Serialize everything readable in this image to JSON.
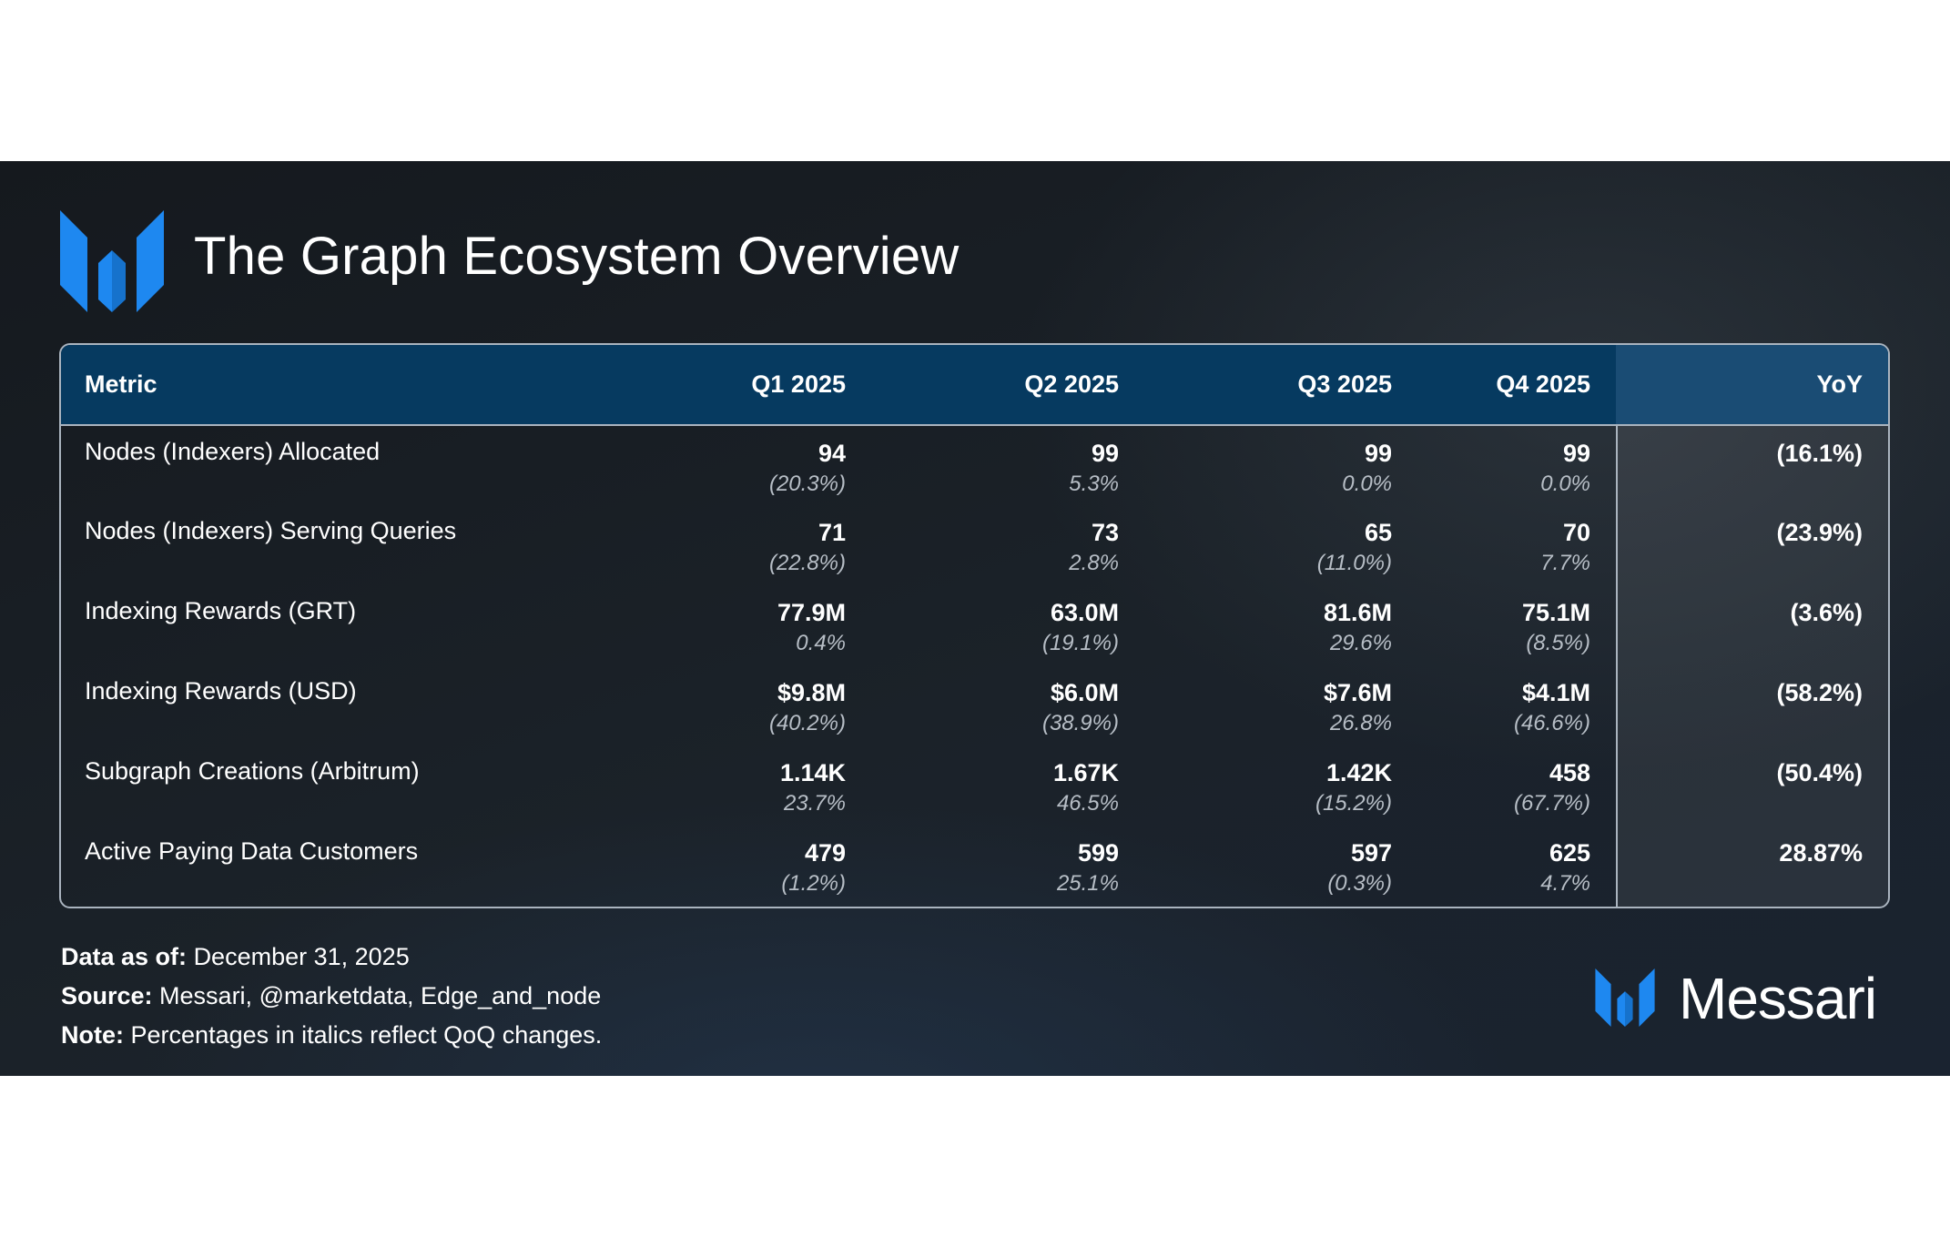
{
  "header": {
    "title": "The Graph Ecosystem Overview",
    "logo_icon": "messari-logo-icon",
    "brand_color": "#1e88f0"
  },
  "table": {
    "columns": [
      "Metric",
      "Q1 2025",
      "Q2 2025",
      "Q3 2025",
      "Q4 2025",
      "YoY"
    ],
    "rows": [
      {
        "metric": "Nodes (Indexers) Allocated",
        "quarters": [
          {
            "value": "94",
            "change": "(20.3%)"
          },
          {
            "value": "99",
            "change": "5.3%"
          },
          {
            "value": "99",
            "change": "0.0%"
          },
          {
            "value": "99",
            "change": "0.0%"
          }
        ],
        "yoy": "(16.1%)"
      },
      {
        "metric": "Nodes (Indexers) Serving Queries",
        "quarters": [
          {
            "value": "71",
            "change": "(22.8%)"
          },
          {
            "value": "73",
            "change": "2.8%"
          },
          {
            "value": "65",
            "change": "(11.0%)"
          },
          {
            "value": "70",
            "change": "7.7%"
          }
        ],
        "yoy": "(23.9%)"
      },
      {
        "metric": "Indexing Rewards (GRT)",
        "quarters": [
          {
            "value": "77.9M",
            "change": "0.4%"
          },
          {
            "value": "63.0M",
            "change": "(19.1%)"
          },
          {
            "value": "81.6M",
            "change": "29.6%"
          },
          {
            "value": "75.1M",
            "change": "(8.5%)"
          }
        ],
        "yoy": "(3.6%)"
      },
      {
        "metric": "Indexing Rewards (USD)",
        "quarters": [
          {
            "value": "$9.8M",
            "change": "(40.2%)"
          },
          {
            "value": "$6.0M",
            "change": "(38.9%)"
          },
          {
            "value": "$7.6M",
            "change": "26.8%"
          },
          {
            "value": "$4.1M",
            "change": "(46.6%)"
          }
        ],
        "yoy": "(58.2%)"
      },
      {
        "metric": "Subgraph Creations (Arbitrum)",
        "quarters": [
          {
            "value": "1.14K",
            "change": "23.7%"
          },
          {
            "value": "1.67K",
            "change": "46.5%"
          },
          {
            "value": "1.42K",
            "change": "(15.2%)"
          },
          {
            "value": "458",
            "change": "(67.7%)"
          }
        ],
        "yoy": "(50.4%)"
      },
      {
        "metric": "Active Paying Data Customers",
        "quarters": [
          {
            "value": "479",
            "change": "(1.2%)"
          },
          {
            "value": "599",
            "change": "25.1%"
          },
          {
            "value": "597",
            "change": "(0.3%)"
          },
          {
            "value": "625",
            "change": "4.7%"
          }
        ],
        "yoy": "28.87%"
      }
    ]
  },
  "footer": {
    "data_as_of_label": "Data as of:",
    "data_as_of_value": "December 31, 2025",
    "source_label": "Source:",
    "source_value": "Messari, @marketdata, Edge_and_node",
    "note_label": "Note:",
    "note_value": "Percentages in italics reflect QoQ changes."
  },
  "brand": {
    "name": "Messari",
    "icon": "messari-logo-icon"
  }
}
